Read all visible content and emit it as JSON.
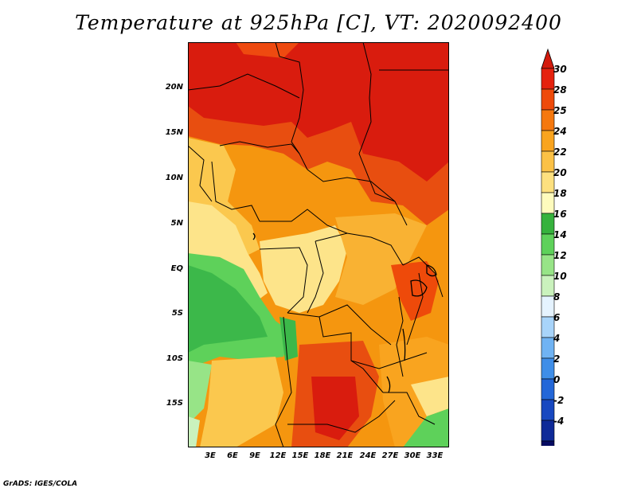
{
  "title": "Temperature at 925hPa [C], VT: 2020092400",
  "credit": "GrADS: IGES/COLA",
  "map": {
    "lat_labels": [
      "20N",
      "15N",
      "10N",
      "5N",
      "EQ",
      "5S",
      "10S",
      "15S"
    ],
    "lon_labels": [
      "3E",
      "6E",
      "9E",
      "12E",
      "15E",
      "18E",
      "21E",
      "24E",
      "27E",
      "30E",
      "33E"
    ]
  },
  "colorbar": {
    "labels": [
      "30",
      "28",
      "25",
      "24",
      "22",
      "20",
      "18",
      "16",
      "14",
      "12",
      "10",
      "8",
      "6",
      "4",
      "2",
      "0",
      "-2",
      "-4"
    ],
    "colors": [
      "#e5220e",
      "#ee4a0a",
      "#f5780e",
      "#f9a41f",
      "#fbc146",
      "#fde07f",
      "#fefbbd",
      "#36b23d",
      "#5ed15a",
      "#97e487",
      "#caf2bd",
      "#e5f3ff",
      "#a8d4fa",
      "#70b3f3",
      "#3f8ee8",
      "#2367d8",
      "#1848c0",
      "#0e2a98",
      "#060b62"
    ],
    "tip_colors": {
      "top": "#d31a0c",
      "bottom": "#d8dcf5"
    }
  },
  "colors": {
    "hot": "#d91c0e",
    "warm": "#f07a12",
    "mild": "#fbc24a",
    "cool_land": "#fde68a",
    "green": "#3cb84a",
    "light_green": "#8ee28a"
  }
}
